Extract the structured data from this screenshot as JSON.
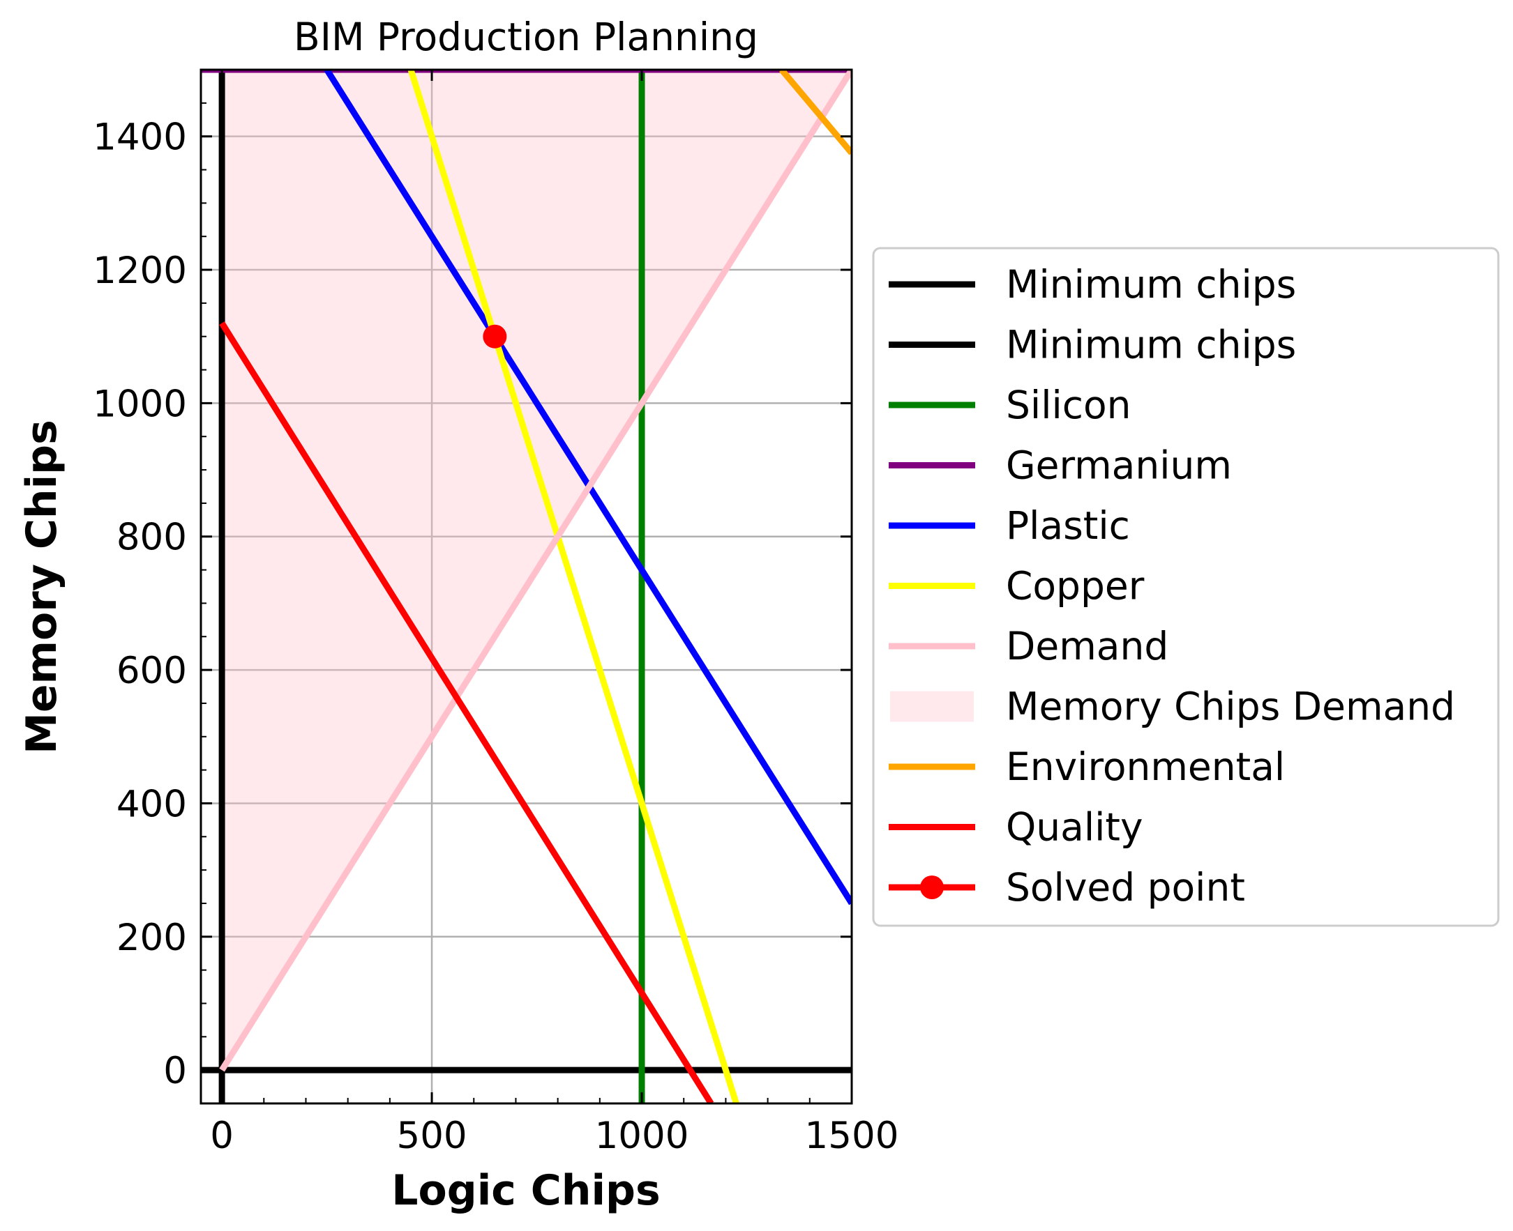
{
  "chart_data": {
    "type": "line",
    "title": "BIM Production Planning",
    "xlabel": "Logic Chips",
    "ylabel": "Memory Chips",
    "xlim": [
      -50,
      1500
    ],
    "ylim": [
      -50,
      1500
    ],
    "xticks": [
      0,
      500,
      1000,
      1500
    ],
    "yticks": [
      0,
      200,
      400,
      600,
      800,
      1000,
      1200,
      1400
    ],
    "xtick_labels": [
      "0",
      "500",
      "1000",
      "1500"
    ],
    "ytick_labels": [
      "0",
      "200",
      "400",
      "600",
      "800",
      "1000",
      "1200",
      "1400"
    ],
    "grid": true,
    "legend_position": "right, outside plot",
    "shaded_region": {
      "name": "Memory Chips Demand",
      "color": "#ffc0cb",
      "lower": [
        [
          0,
          0
        ],
        [
          1500,
          1500
        ]
      ],
      "upper": [
        [
          0,
          1500
        ],
        [
          1500,
          1500
        ]
      ]
    },
    "series": [
      {
        "name": "Minimum chips",
        "color": "#000000",
        "points": [
          [
            0,
            -50
          ],
          [
            0,
            1500
          ]
        ]
      },
      {
        "name": "Minimum chips",
        "color": "#000000",
        "points": [
          [
            -50,
            0
          ],
          [
            1500,
            0
          ]
        ]
      },
      {
        "name": "Silicon",
        "color": "#008000",
        "points": [
          [
            1000,
            -50
          ],
          [
            1000,
            1500
          ]
        ]
      },
      {
        "name": "Germanium",
        "color": "#800080",
        "points": [
          [
            -50,
            1500
          ],
          [
            1500,
            1500
          ]
        ]
      },
      {
        "name": "Plastic",
        "color": "#0000ff",
        "points": [
          [
            250,
            1500
          ],
          [
            1500,
            250
          ]
        ]
      },
      {
        "name": "Copper",
        "color": "#ffff00",
        "points": [
          [
            450,
            1500
          ],
          [
            1225,
            -50
          ]
        ]
      },
      {
        "name": "Demand",
        "color": "#ffc0cb",
        "points": [
          [
            0,
            0
          ],
          [
            1500,
            1500
          ]
        ]
      },
      {
        "name": "Environmental",
        "color": "#ffa500",
        "points": [
          [
            1333,
            1500
          ],
          [
            1500,
            1375
          ]
        ]
      },
      {
        "name": "Quality",
        "color": "#ff0000",
        "points": [
          [
            0,
            1120
          ],
          [
            1165,
            -50
          ]
        ]
      }
    ],
    "solved_point": {
      "name": "Solved point",
      "color": "#ff0000",
      "x": 650,
      "y": 1100
    },
    "legend": [
      "Minimum chips",
      "Minimum chips",
      "Silicon",
      "Germanium",
      "Plastic",
      "Copper",
      "Demand",
      "Memory Chips Demand",
      "Environmental",
      "Quality",
      "Solved point"
    ]
  }
}
